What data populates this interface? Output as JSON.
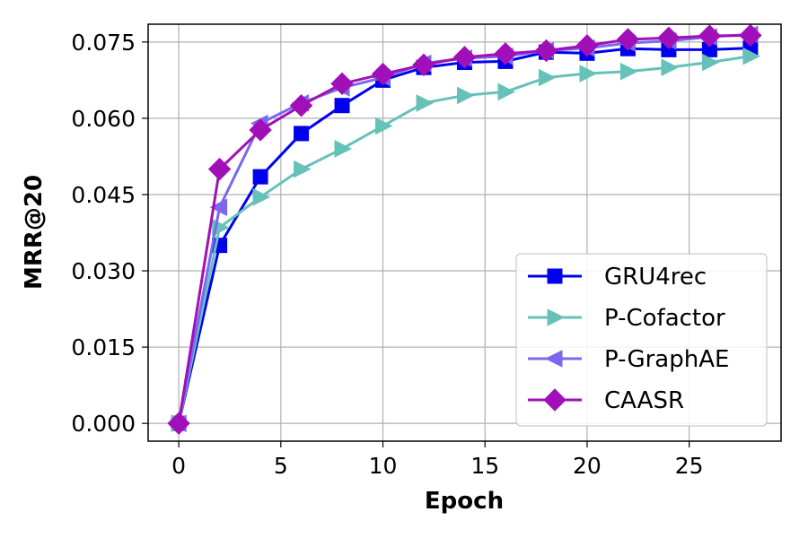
{
  "chart_data": {
    "type": "line",
    "title": "",
    "xlabel": "Epoch",
    "ylabel": "MRR@20",
    "xlim": [
      -1.5,
      29.5
    ],
    "ylim": [
      -0.0035,
      0.0785
    ],
    "xticks": [
      0,
      5,
      10,
      15,
      20,
      25
    ],
    "xtick_labels": [
      "0",
      "5",
      "10",
      "15",
      "20",
      "25"
    ],
    "yticks": [
      0.0,
      0.015,
      0.03,
      0.045,
      0.06,
      0.075
    ],
    "ytick_labels": [
      "0.000",
      "0.015",
      "0.030",
      "0.045",
      "0.060",
      "0.075"
    ],
    "grid": true,
    "legend_position": "lower-right",
    "x": [
      0,
      2,
      4,
      6,
      8,
      10,
      12,
      14,
      16,
      18,
      20,
      22,
      24,
      26,
      28
    ],
    "series": [
      {
        "name": "GRU4rec",
        "color": "#0000ee",
        "marker": "square",
        "values": [
          0.0,
          0.035,
          0.0485,
          0.057,
          0.0625,
          0.0675,
          0.07,
          0.071,
          0.0712,
          0.073,
          0.0728,
          0.0737,
          0.0735,
          0.0735,
          0.0738
        ]
      },
      {
        "name": "P-Cofactor",
        "color": "#66c2b8",
        "marker": "triangle-right",
        "values": [
          0.0,
          0.0385,
          0.0445,
          0.05,
          0.054,
          0.0585,
          0.063,
          0.0645,
          0.0652,
          0.068,
          0.0688,
          0.0692,
          0.07,
          0.071,
          0.0722
        ]
      },
      {
        "name": "P-GraphAE",
        "color": "#7b68ee",
        "marker": "triangle-left",
        "values": [
          0.0,
          0.0425,
          0.059,
          0.063,
          0.066,
          0.068,
          0.0708,
          0.0718,
          0.0722,
          0.0733,
          0.0738,
          0.0748,
          0.0752,
          0.076,
          0.0765
        ]
      },
      {
        "name": "CAASR",
        "color": "#a10fb8",
        "marker": "diamond",
        "values": [
          0.0,
          0.05,
          0.0577,
          0.0625,
          0.0668,
          0.0687,
          0.0705,
          0.072,
          0.0727,
          0.0733,
          0.0743,
          0.0755,
          0.0758,
          0.0762,
          0.0763
        ]
      }
    ]
  }
}
